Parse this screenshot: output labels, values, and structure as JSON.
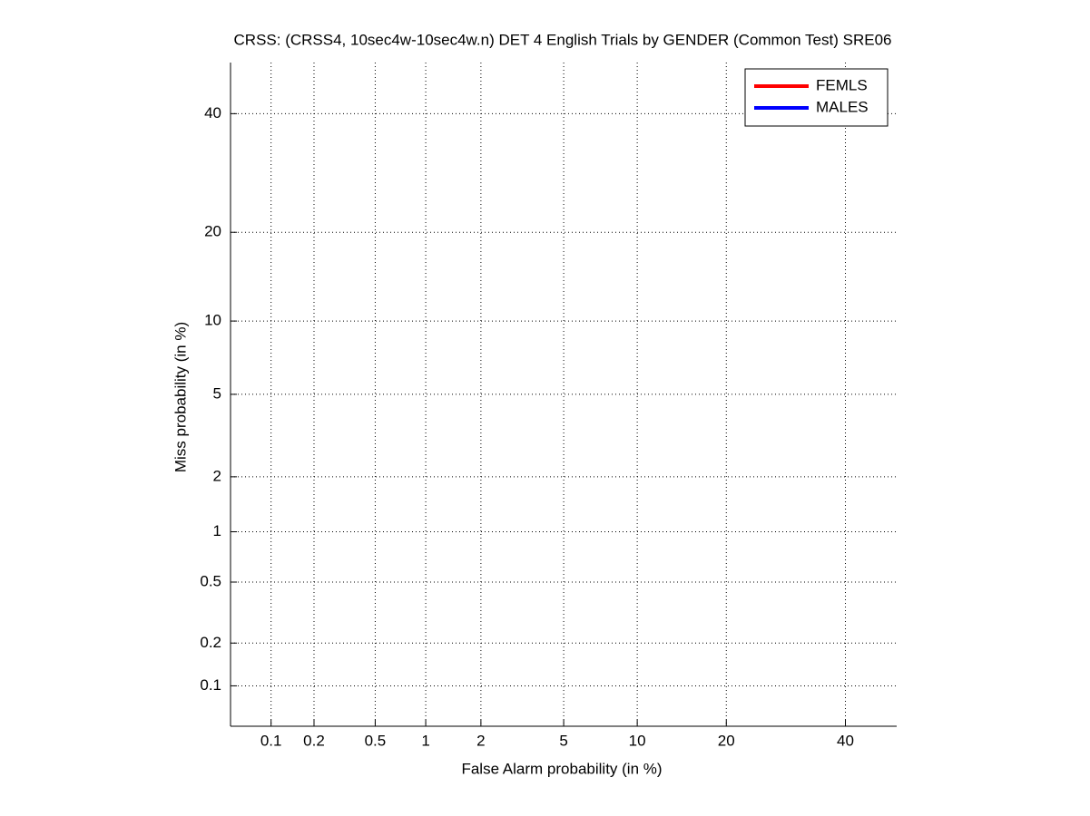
{
  "chart_data": {
    "type": "det",
    "title": "CRSS: (CRSS4, 10sec4w-10sec4w.n) DET 4 English Trials by GENDER (Common Test) SRE06",
    "x_label": "False Alarm probability (in %)",
    "y_label": "Miss probability (in %)",
    "xlim": [
      0.05,
      50
    ],
    "ylim": [
      0.05,
      50
    ],
    "xticks": [
      0.1,
      0.2,
      0.5,
      1,
      2,
      5,
      10,
      20,
      40
    ],
    "yticks": [
      0.1,
      0.2,
      0.5,
      1,
      2,
      5,
      10,
      20,
      40
    ],
    "scale": "normal-deviate",
    "grid": true,
    "legend": "upper right",
    "series": [
      {
        "name": "FEMLS",
        "color": "#ff0000"
      },
      {
        "name": "MALES",
        "color": "#0000ff"
      }
    ]
  }
}
